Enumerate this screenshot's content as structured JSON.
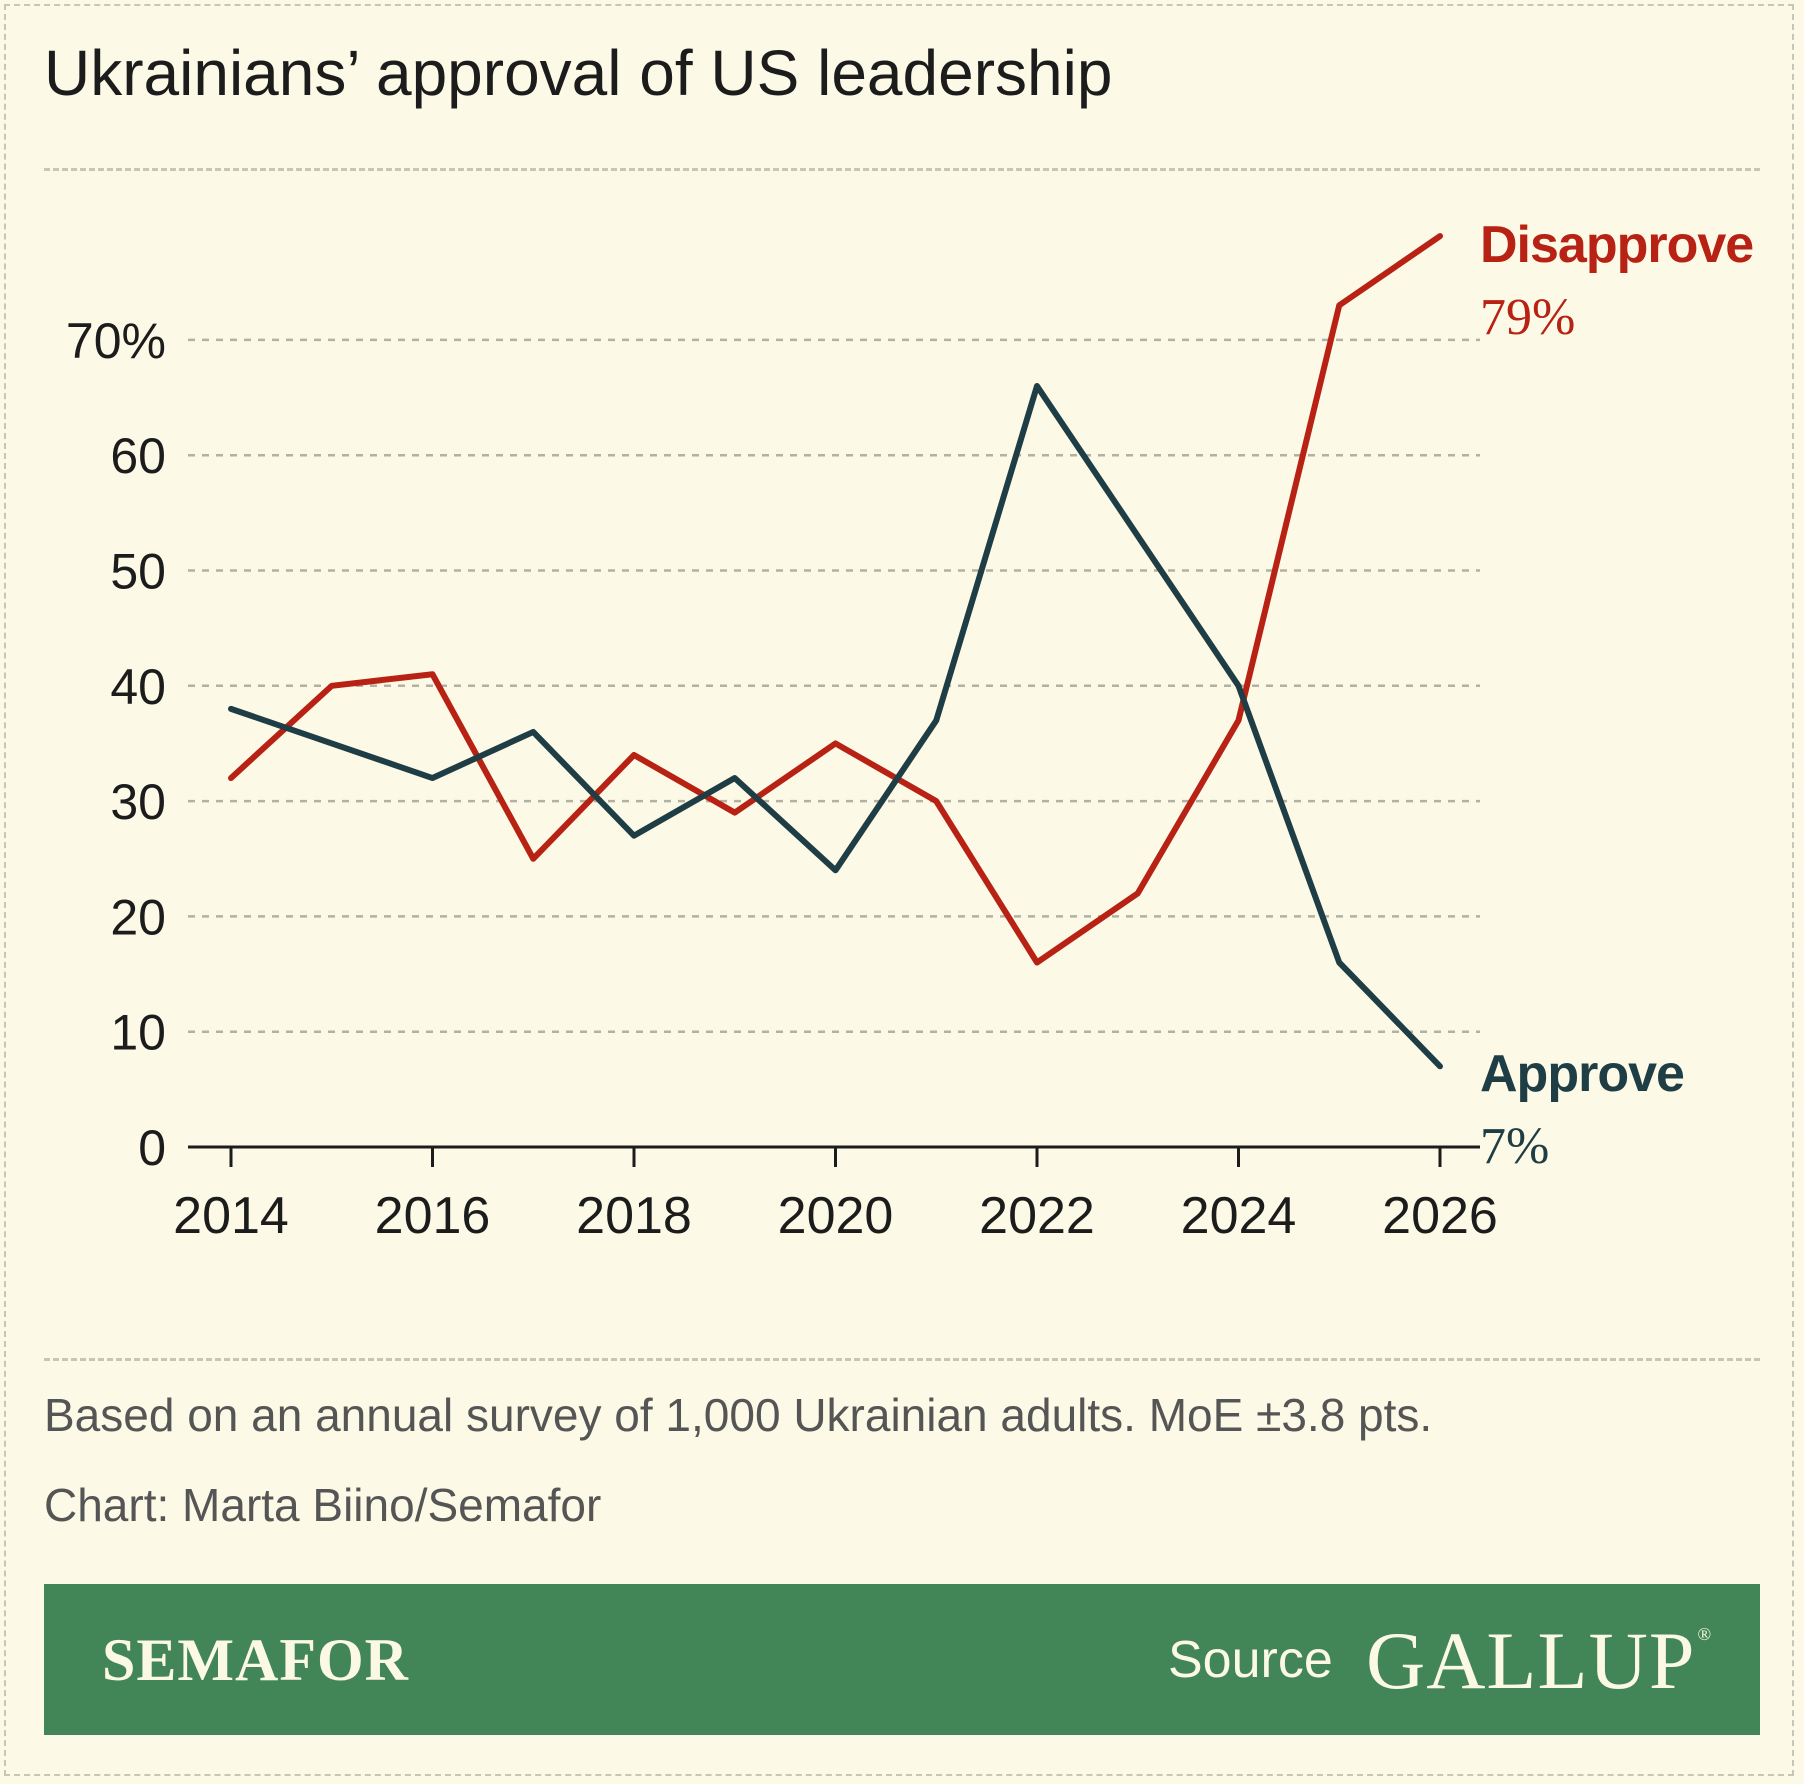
{
  "title": "Ukrainians’ approval of US leadership",
  "note": "Based on an annual survey of 1,000 Ukrainian adults. MoE ±3.8 pts.",
  "credit": "Chart: Marta Biino/Semafor",
  "footer": {
    "brand": "SEMAFOR",
    "source_label": "Source",
    "source_name": "GALLUP"
  },
  "colors": {
    "background": "#fcf9e6",
    "disapprove": "#b72214",
    "approve": "#1f3d45",
    "footer_band": "#428556"
  },
  "chart_data": {
    "type": "line",
    "x": [
      2014,
      2015,
      2016,
      2017,
      2018,
      2019,
      2020,
      2021,
      2022,
      2023,
      2024,
      2025,
      2026
    ],
    "series": [
      {
        "name": "Disapprove",
        "end_label": "79%",
        "color": "#b72214",
        "values": [
          32,
          40,
          41,
          25,
          34,
          29,
          35,
          30,
          16,
          22,
          37,
          73,
          79
        ]
      },
      {
        "name": "Approve",
        "end_label": "7%",
        "color": "#1f3d45",
        "values": [
          38,
          35,
          32,
          36,
          27,
          32,
          24,
          37,
          66,
          53,
          40,
          16,
          7
        ]
      }
    ],
    "xticks": [
      2014,
      2016,
      2018,
      2020,
      2022,
      2024,
      2026
    ],
    "xtick_labels": [
      "2014",
      "2016",
      "2018",
      "2020",
      "2022",
      "2024",
      "2026"
    ],
    "yticks": [
      0,
      10,
      20,
      30,
      40,
      50,
      60,
      70
    ],
    "ytick_labels": [
      "0",
      "10",
      "20",
      "30",
      "40",
      "50",
      "60",
      "70%"
    ],
    "xlim": [
      2014,
      2026
    ],
    "ylim": [
      0,
      79
    ],
    "grid": "horizontal dashed",
    "legend": "direct labels at line ends"
  }
}
